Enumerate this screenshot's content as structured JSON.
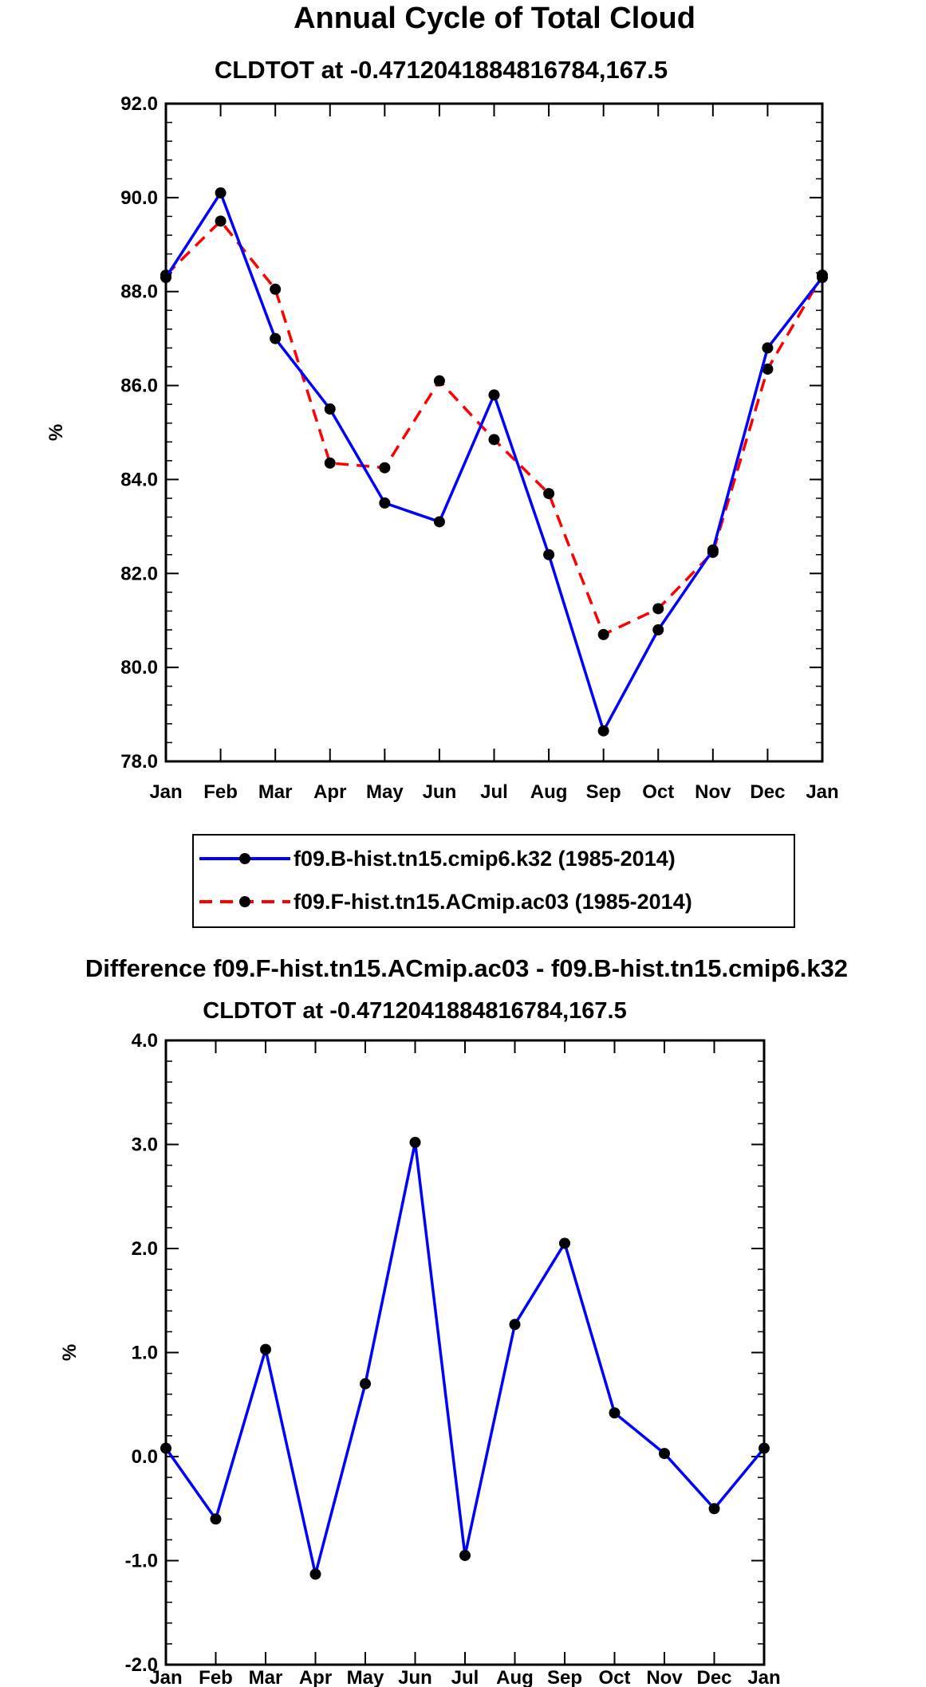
{
  "figure": {
    "title": "Annual Cycle of Total Cloud",
    "diff_title": "Difference f09.F-hist.tn15.ACmip.ac03 - f09.B-hist.tn15.cmip6.k32"
  },
  "chart_data": [
    {
      "type": "line",
      "subtitle": "CLDTOT at -0.4712041884816784,167.5",
      "ylabel": "%",
      "xlabel": "",
      "ylim": [
        78.0,
        92.0
      ],
      "yticks": [
        78.0,
        80.0,
        82.0,
        84.0,
        86.0,
        88.0,
        90.0,
        92.0
      ],
      "ytick_labels": [
        "78.0",
        "80.0",
        "82.0",
        "84.0",
        "86.0",
        "88.0",
        "90.0",
        "92.0"
      ],
      "categories": [
        "Jan",
        "Feb",
        "Mar",
        "Apr",
        "May",
        "Jun",
        "Jul",
        "Aug",
        "Sep",
        "Oct",
        "Nov",
        "Dec",
        "Jan"
      ],
      "series": [
        {
          "name": "f09.B-hist.tn15.cmip6.k32 (1985-2014)",
          "color": "#0000ff",
          "dash": "solid",
          "values": [
            88.3,
            90.1,
            87.0,
            85.5,
            83.5,
            83.1,
            85.8,
            82.4,
            78.65,
            80.8,
            82.5,
            86.8,
            88.3
          ]
        },
        {
          "name": "f09.F-hist.tn15.ACmip.ac03 (1985-2014)",
          "color": "#ff0000",
          "dash": "dashed",
          "values": [
            88.35,
            89.5,
            88.05,
            84.35,
            84.25,
            86.1,
            84.85,
            83.7,
            80.7,
            81.25,
            82.45,
            86.35,
            88.35
          ]
        }
      ],
      "marker_color": "#000000",
      "legend_position": "below"
    },
    {
      "type": "line",
      "subtitle": "CLDTOT at -0.4712041884816784,167.5",
      "ylabel": "%",
      "xlabel": "",
      "ylim": [
        -2.0,
        4.0
      ],
      "yticks": [
        -2.0,
        -1.0,
        0.0,
        1.0,
        2.0,
        3.0,
        4.0
      ],
      "ytick_labels": [
        "-2.0",
        "-1.0",
        "0.0",
        "1.0",
        "2.0",
        "3.0",
        "4.0"
      ],
      "categories": [
        "Jan",
        "Feb",
        "Mar",
        "Apr",
        "May",
        "Jun",
        "Jul",
        "Aug",
        "Sep",
        "Oct",
        "Nov",
        "Dec",
        "Jan"
      ],
      "series": [
        {
          "name": "Difference",
          "color": "#0000ff",
          "dash": "solid",
          "values": [
            0.08,
            -0.6,
            1.03,
            -1.13,
            0.7,
            3.02,
            -0.95,
            1.27,
            2.05,
            0.42,
            0.03,
            -0.5,
            0.08
          ]
        }
      ],
      "marker_color": "#000000"
    }
  ]
}
